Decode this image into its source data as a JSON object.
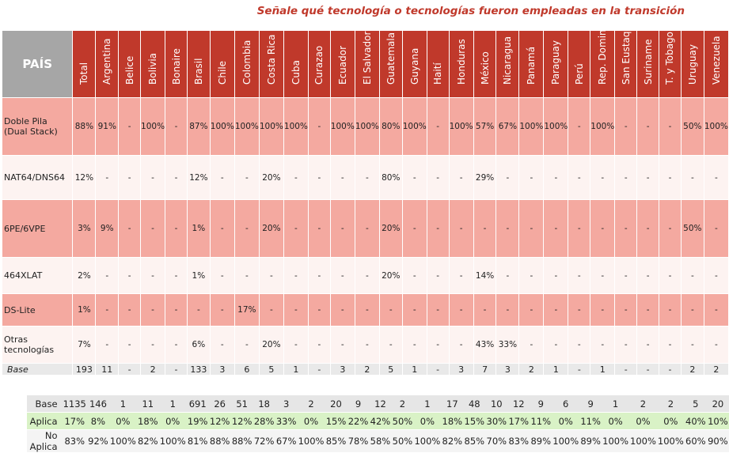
{
  "title": "Señale qué tecnología o tecnologías fueron empleadas en la transición",
  "header_label": "PAÍS",
  "columns": [
    "Total",
    "Argentina",
    "Belice",
    "Bolivia",
    "Bonaire",
    "Brasil",
    "Chile",
    "Colombia",
    "Costa Rica",
    "Cuba",
    "Curazao",
    "Ecuador",
    "El Salvador",
    "Guatemala",
    "Guyana",
    "Haití",
    "Honduras",
    "México",
    "Nicaragua",
    "Panamá",
    "Paraguay",
    "Perú",
    "Rep. Dominicana",
    "San Eustaquio",
    "Suriname",
    "T. y Tobago",
    "Uruguay",
    "Venezuela"
  ],
  "colors": {
    "header": "#c0392b",
    "strong_row": "#f4a9a0",
    "light_row": "#fdf3f1",
    "aplica_row": "#d9f2c6",
    "title": "#c0392b"
  },
  "chart_data": {
    "type": "table",
    "title": "Señale qué tecnología o tecnologías fueron empleadas en la transición",
    "rows": [
      {
        "label": "Doble Pila (Dual Stack)",
        "values": [
          "88%",
          "91%",
          "-",
          "100%",
          "-",
          "87%",
          "100%",
          "100%",
          "100%",
          "100%",
          "-",
          "100%",
          "100%",
          "80%",
          "100%",
          "-",
          "100%",
          "57%",
          "67%",
          "100%",
          "100%",
          "-",
          "100%",
          "-",
          "-",
          "-",
          "50%",
          "100%"
        ]
      },
      {
        "label": "NAT64/DNS64",
        "values": [
          "12%",
          "-",
          "-",
          "-",
          "-",
          "12%",
          "-",
          "-",
          "20%",
          "-",
          "-",
          "-",
          "-",
          "80%",
          "-",
          "-",
          "-",
          "29%",
          "-",
          "-",
          "-",
          "-",
          "-",
          "-",
          "-",
          "-",
          "-",
          "-"
        ]
      },
      {
        "label": "6PE/6VPE",
        "values": [
          "3%",
          "9%",
          "-",
          "-",
          "-",
          "1%",
          "-",
          "-",
          "20%",
          "-",
          "-",
          "-",
          "-",
          "20%",
          "-",
          "-",
          "-",
          "-",
          "-",
          "-",
          "-",
          "-",
          "-",
          "-",
          "-",
          "-",
          "50%",
          "-"
        ]
      },
      {
        "label": "464XLAT",
        "values": [
          "2%",
          "-",
          "-",
          "-",
          "-",
          "1%",
          "-",
          "-",
          "-",
          "-",
          "-",
          "-",
          "-",
          "20%",
          "-",
          "-",
          "-",
          "14%",
          "-",
          "-",
          "-",
          "-",
          "-",
          "-",
          "-",
          "-",
          "-",
          "-"
        ]
      },
      {
        "label": "DS-Lite",
        "values": [
          "1%",
          "-",
          "-",
          "-",
          "-",
          "-",
          "-",
          "17%",
          "-",
          "-",
          "-",
          "-",
          "-",
          "-",
          "-",
          "-",
          "-",
          "-",
          "-",
          "-",
          "-",
          "-",
          "-",
          "-",
          "-",
          "-",
          "-",
          "-"
        ]
      },
      {
        "label": "Otras tecnologías",
        "values": [
          "7%",
          "-",
          "-",
          "-",
          "-",
          "6%",
          "-",
          "-",
          "20%",
          "-",
          "-",
          "-",
          "-",
          "-",
          "-",
          "-",
          "-",
          "43%",
          "33%",
          "-",
          "-",
          "-",
          "-",
          "-",
          "-",
          "-",
          "-",
          "-"
        ]
      }
    ],
    "base": {
      "label": "Base",
      "values": [
        "193",
        "11",
        "-",
        "2",
        "-",
        "133",
        "3",
        "6",
        "5",
        "1",
        "-",
        "3",
        "2",
        "5",
        "1",
        "-",
        "3",
        "7",
        "3",
        "2",
        "1",
        "-",
        "1",
        "-",
        "-",
        "-",
        "2",
        "2"
      ]
    },
    "summary": [
      {
        "label": "Base",
        "values": [
          "1135",
          "146",
          "1",
          "11",
          "1",
          "691",
          "26",
          "51",
          "18",
          "3",
          "2",
          "20",
          "9",
          "12",
          "2",
          "1",
          "17",
          "48",
          "10",
          "12",
          "9",
          "6",
          "9",
          "1",
          "2",
          "2",
          "5",
          "20"
        ]
      },
      {
        "label": "Aplica",
        "values": [
          "17%",
          "8%",
          "0%",
          "18%",
          "0%",
          "19%",
          "12%",
          "12%",
          "28%",
          "33%",
          "0%",
          "15%",
          "22%",
          "42%",
          "50%",
          "0%",
          "18%",
          "15%",
          "30%",
          "17%",
          "11%",
          "0%",
          "11%",
          "0%",
          "0%",
          "0%",
          "40%",
          "10%"
        ]
      },
      {
        "label": "No Aplica",
        "values": [
          "83%",
          "92%",
          "100%",
          "82%",
          "100%",
          "81%",
          "88%",
          "88%",
          "72%",
          "67%",
          "100%",
          "85%",
          "78%",
          "58%",
          "50%",
          "100%",
          "82%",
          "85%",
          "70%",
          "83%",
          "89%",
          "100%",
          "89%",
          "100%",
          "100%",
          "100%",
          "60%",
          "90%"
        ]
      }
    ]
  }
}
